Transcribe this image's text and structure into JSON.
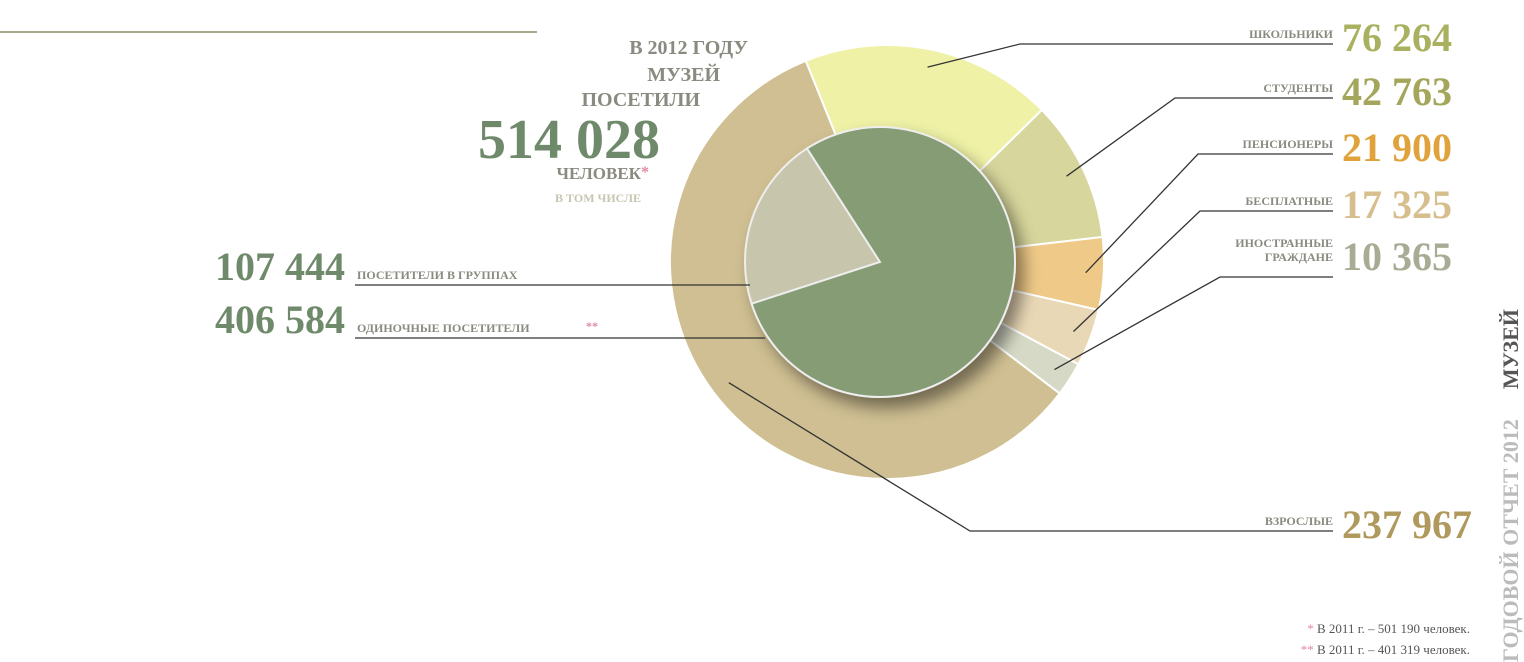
{
  "chart_data": {
    "type": "pie",
    "title_lines": [
      "В 2012 ГОДУ",
      "МУЗЕЙ",
      "ПОСЕТИЛИ"
    ],
    "total": {
      "value": 514028,
      "label": "514 028"
    },
    "unit": "ЧЕЛОВЕК",
    "unit_mark": "*",
    "subtitle": "В ТОМ ЧИСЛЕ",
    "inner": {
      "categories": [
        "ПОСЕТИТЕЛИ В ГРУППАХ",
        "ОДИНОЧНЫЕ ПОСЕТИТЕЛИ"
      ],
      "values": [
        107444,
        406584
      ],
      "value_labels": [
        "107 444",
        "406 584"
      ],
      "colors": [
        "#c7c5ab",
        "#869c75"
      ],
      "single_mark": "**"
    },
    "outer": {
      "categories": [
        "ШКОЛЬНИКИ",
        "СТУДЕНТЫ",
        "ПЕНСИОНЕРЫ",
        "БЕСПЛАТНЫЕ",
        "ИНОСТРАННЫЕ ГРАЖДАНЕ",
        "ВЗРОСЛЫЕ"
      ],
      "values": [
        76264,
        42763,
        21900,
        17325,
        10365,
        237967
      ],
      "value_labels": [
        "76 264",
        "42 763",
        "21 900",
        "17 325",
        "10 365",
        "237 967"
      ],
      "colors": [
        "#eef1a6",
        "#d7d69c",
        "#efc987",
        "#e9d8b6",
        "#d5d9c5",
        "#cfbf92"
      ],
      "value_colors": [
        "#a9b05e",
        "#a4a65b",
        "#e0a23a",
        "#d6be8d",
        "#a8ac94",
        "#b0995c"
      ]
    },
    "footnotes": [
      {
        "mark": "*",
        "text": "В 2011 г. – 501 190 человек."
      },
      {
        "mark": "**",
        "text": "В 2011 г. – 401 319 человек."
      }
    ],
    "side": {
      "left": "ГОДОВОЙ ОТЧЕТ 2012",
      "right": "МУЗЕЙ"
    }
  }
}
